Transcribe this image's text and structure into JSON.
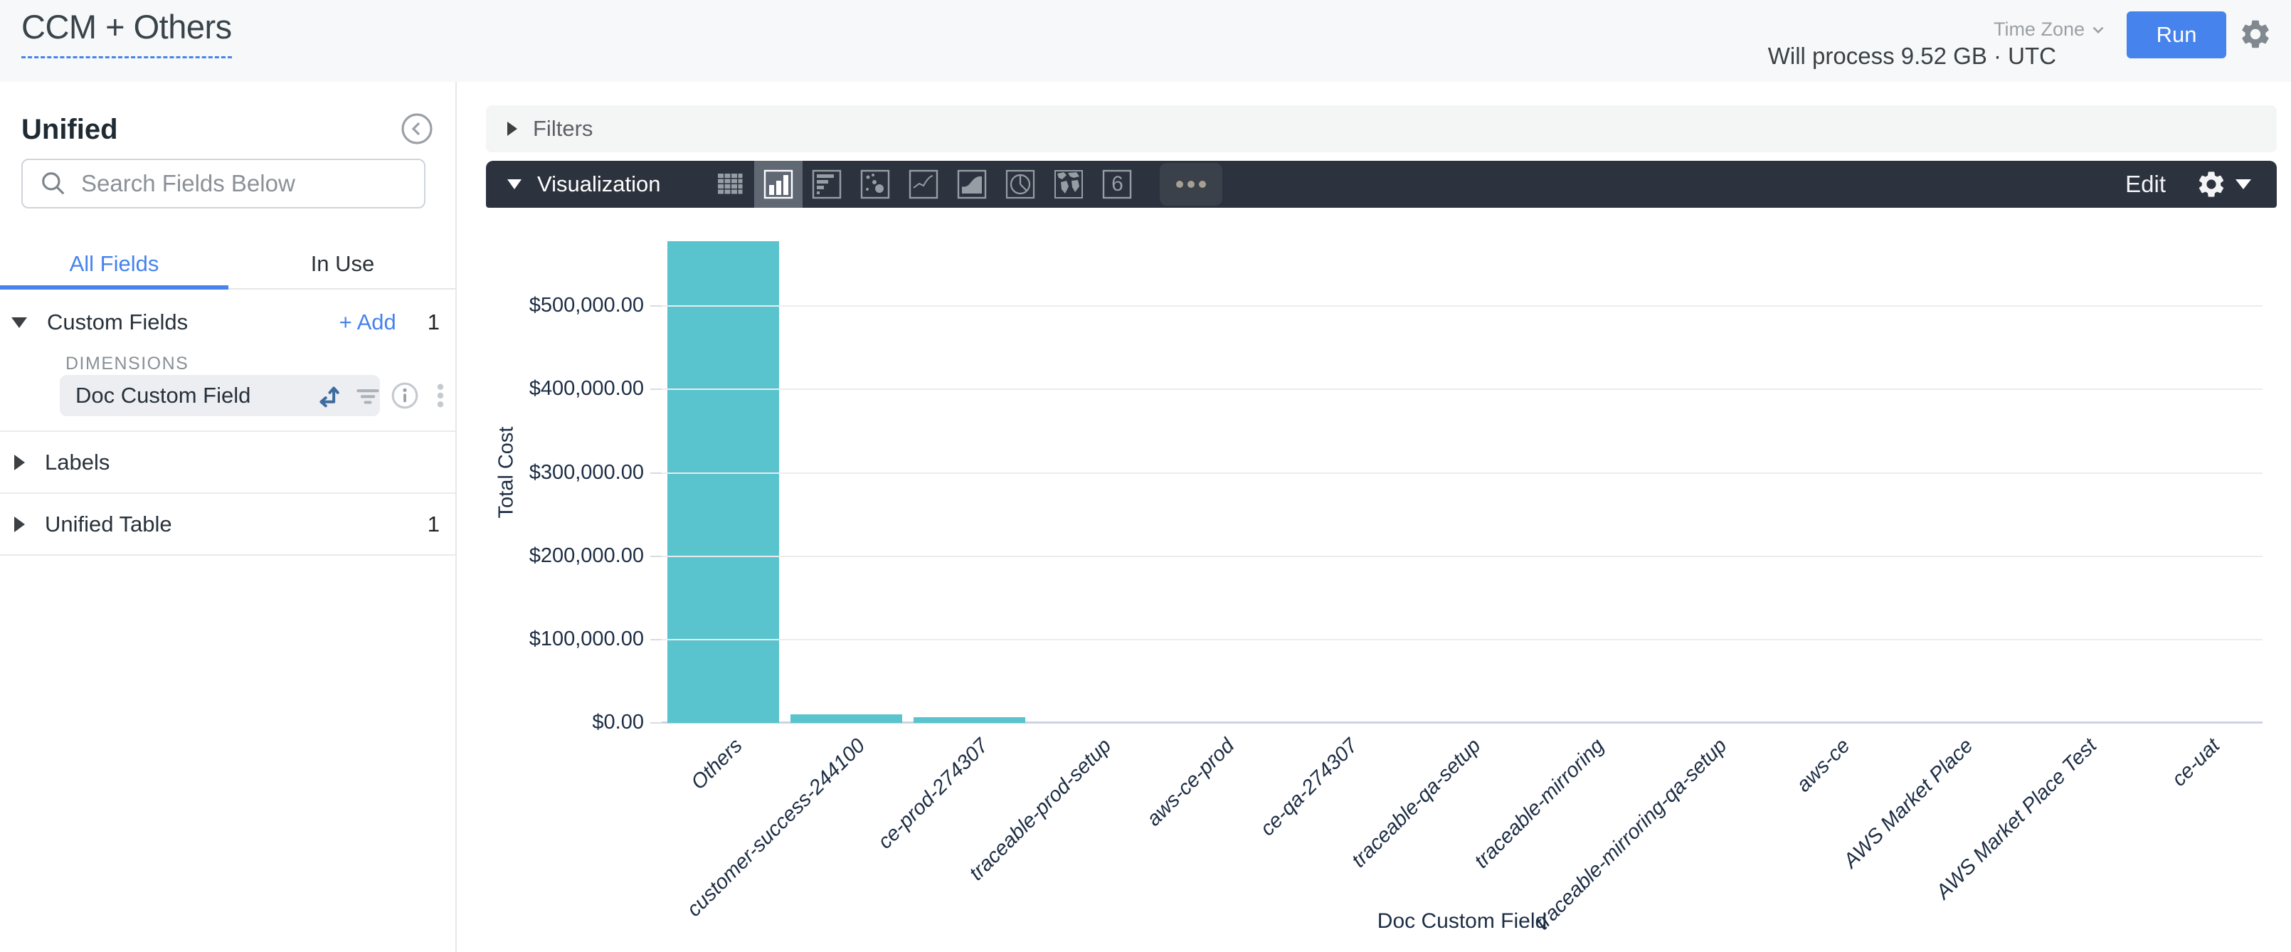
{
  "header": {
    "title": "CCM + Others",
    "process_info": "Will process 9.52 GB · UTC",
    "timezone_label": "Time Zone",
    "run_label": "Run"
  },
  "sidebar": {
    "view_title": "Unified",
    "search_placeholder": "Search Fields Below",
    "tabs": [
      {
        "label": "All Fields",
        "active": true
      },
      {
        "label": "In Use",
        "active": false
      }
    ],
    "custom_fields": {
      "label": "Custom Fields",
      "add_label": "+ Add",
      "count": "1",
      "group_label": "DIMENSIONS",
      "field_name": "Doc Custom Field"
    },
    "labels_section": {
      "label": "Labels"
    },
    "unified_table_section": {
      "label": "Unified Table",
      "count": "1"
    }
  },
  "main": {
    "filters_label": "Filters",
    "viz": {
      "label": "Visualization",
      "edit_label": "Edit",
      "single_value_glyph": "6",
      "selected_icon": "column-chart-icon",
      "icons": [
        "table-icon",
        "column-chart-icon",
        "bar-chart-icon",
        "scatter-chart-icon",
        "line-chart-icon",
        "area-chart-icon",
        "pie-chart-icon",
        "map-chart-icon",
        "single-value-icon",
        "more-icon"
      ]
    }
  },
  "chart_data": {
    "type": "bar",
    "title": "",
    "xlabel": "Doc Custom Field",
    "ylabel": "Total Cost",
    "categories": [
      "Others",
      "customer-success-244100",
      "ce-prod-274307",
      "traceable-prod-setup",
      "aws-ce-prod",
      "ce-qa-274307",
      "traceable-qa-setup",
      "traceable-mirroring",
      "traceable-mirroring-qa-setup",
      "aws-ce",
      "AWS Market Place",
      "AWS Market Place Test",
      "ce-uat"
    ],
    "values": [
      578000,
      10000,
      7000,
      0,
      0,
      0,
      0,
      0,
      0,
      0,
      0,
      0,
      0
    ],
    "ylim": [
      0,
      600000
    ],
    "ytick_step": 100000,
    "ytick_labels": [
      "$0.00",
      "$100,000.00",
      "$200,000.00",
      "$300,000.00",
      "$400,000.00",
      "$500,000.00"
    ],
    "bar_color": "#59c3ce",
    "grid": "horizontal",
    "legend": "none"
  },
  "colors": {
    "accent_blue": "#4683ec",
    "toolbar_bg": "#2d333e",
    "bar_teal": "#59c3ce",
    "axis_text": "#1d2d44"
  }
}
